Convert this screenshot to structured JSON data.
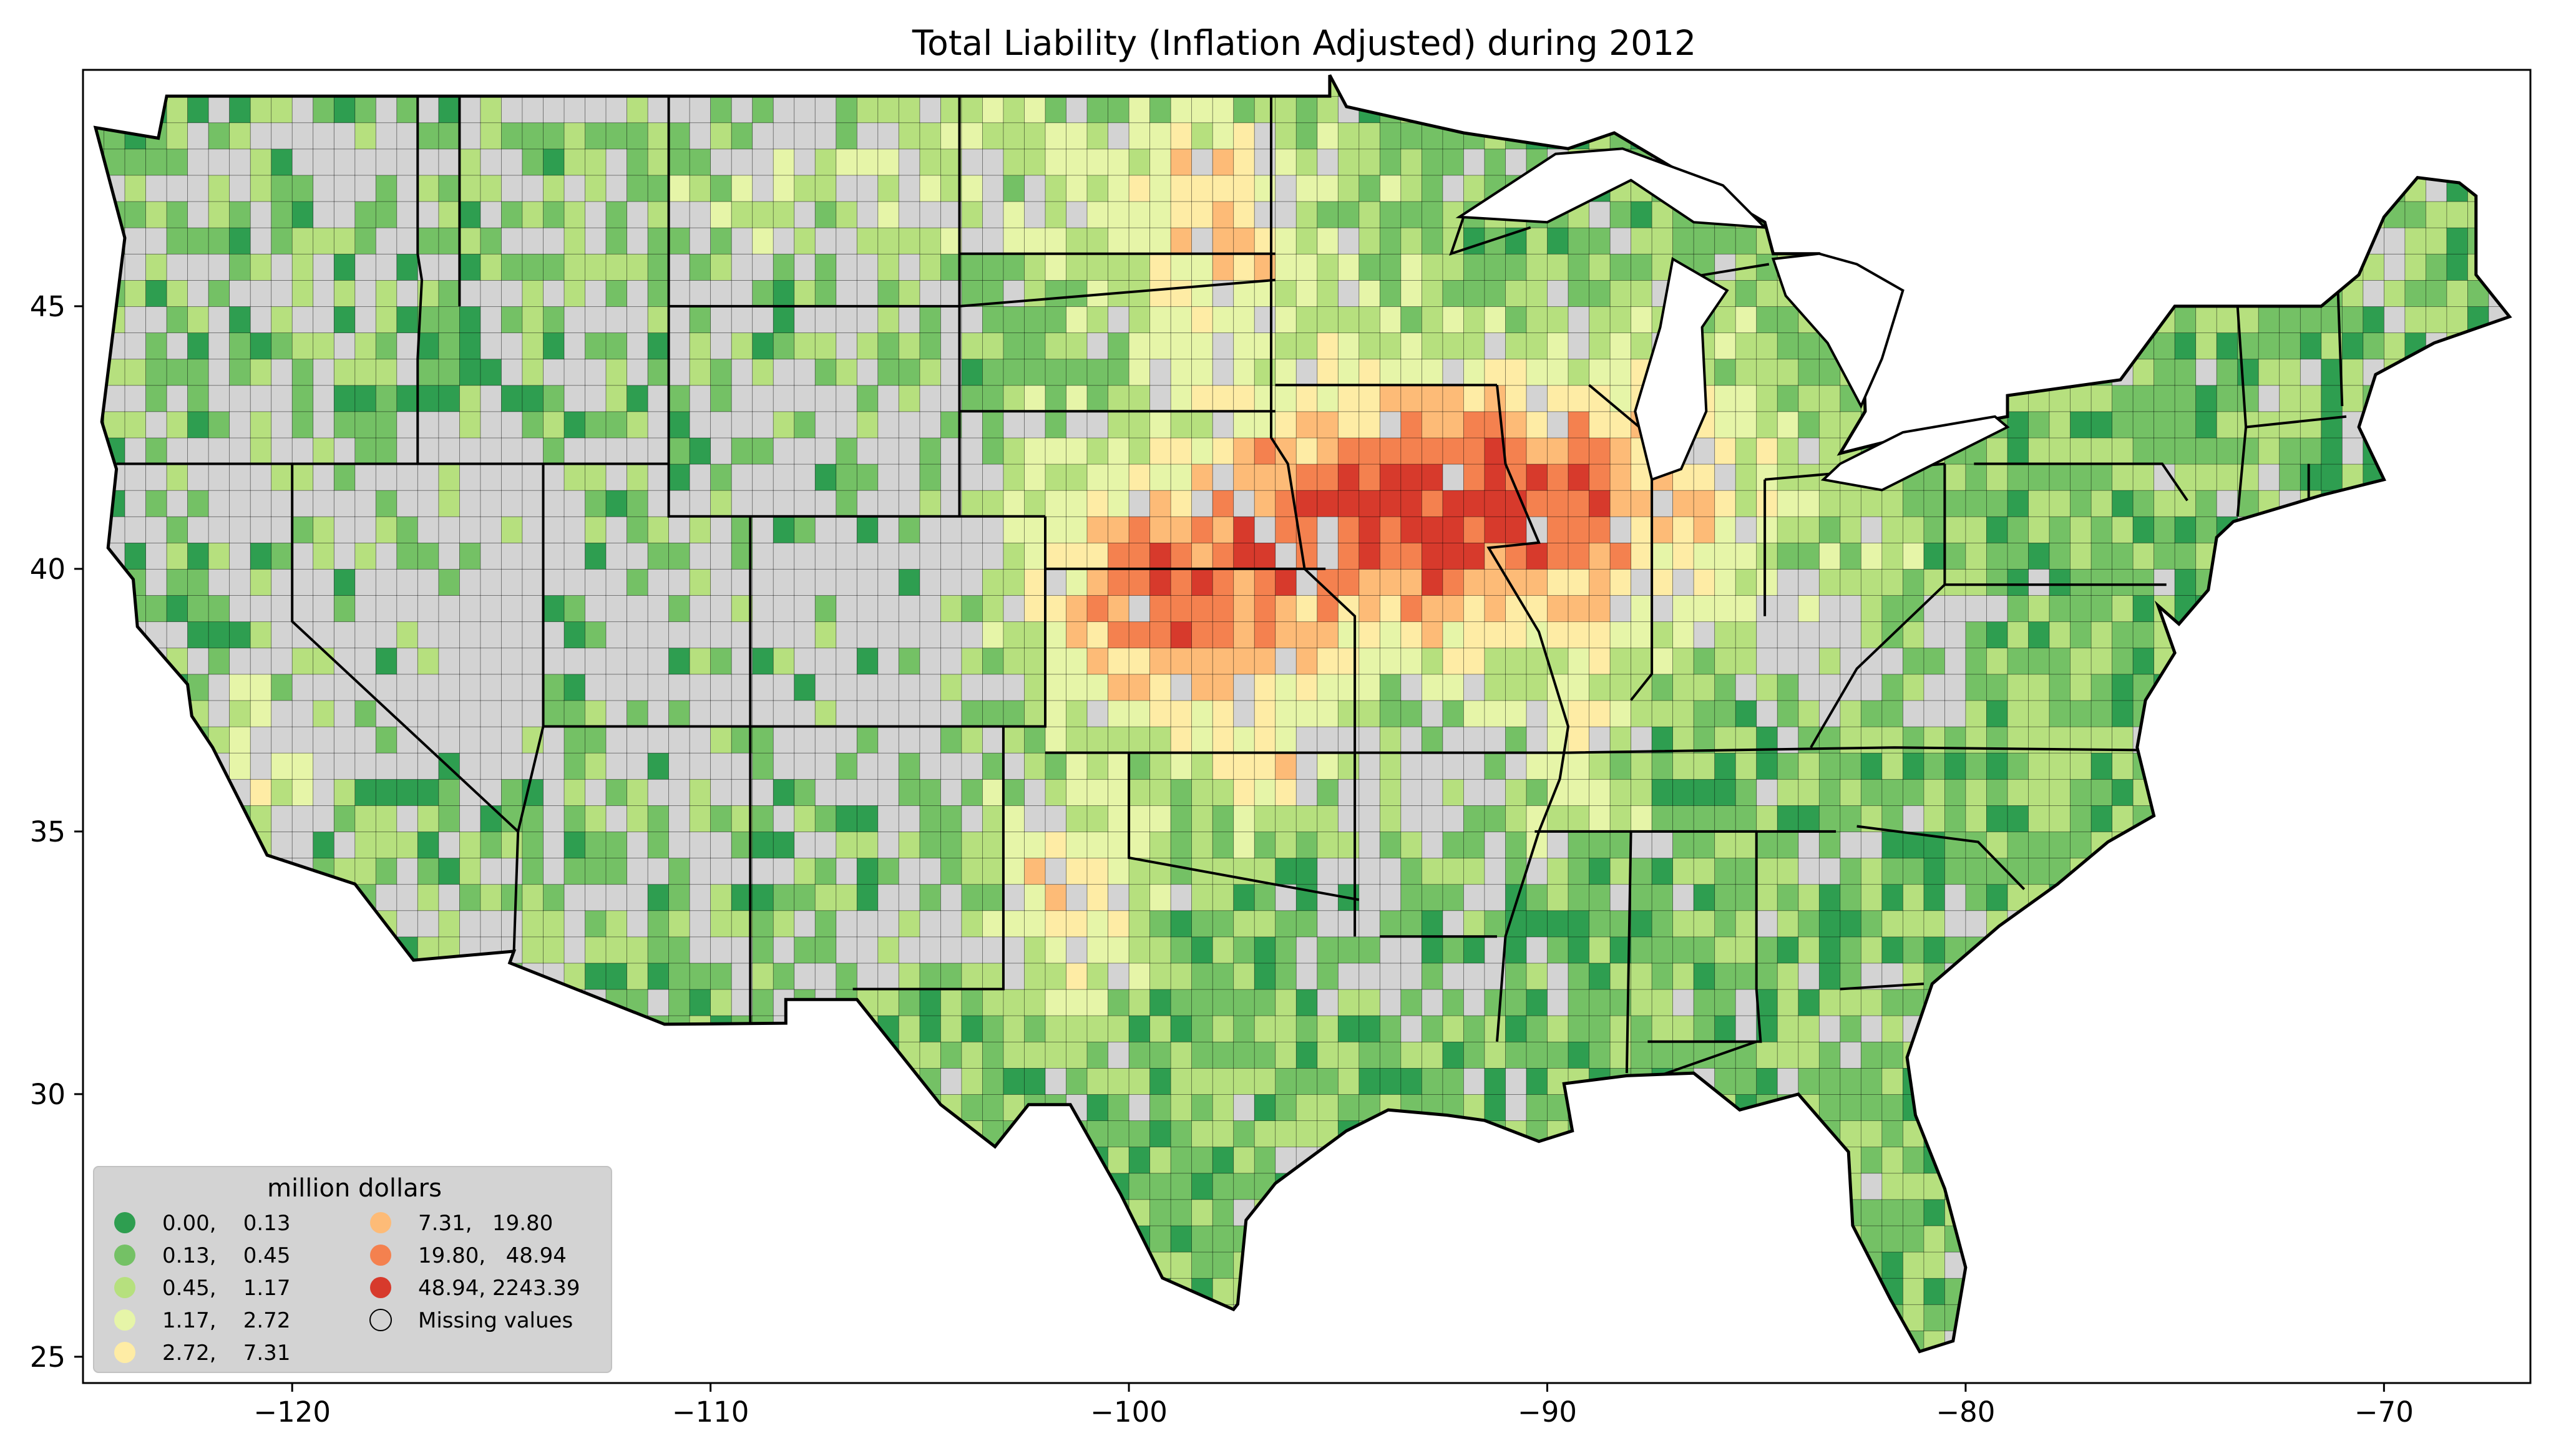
{
  "title": "Total Liability  (Inflation Adjusted) during 2012",
  "colors": {
    "c1": "#2e9e50",
    "c2": "#74c165",
    "c3": "#b6e07e",
    "c4": "#e6f5a8",
    "c5": "#feeca5",
    "c6": "#fdbb77",
    "c7": "#f4814f",
    "c8": "#d73a2c",
    "missing": "#d3d3d3",
    "border": "#000000"
  },
  "chart_data": {
    "type": "choropleth",
    "title": "Total Liability  (Inflation Adjusted) during 2012",
    "xlim": [
      -125,
      -66.5
    ],
    "ylim": [
      24.5,
      49.5
    ],
    "x_ticks": [
      -120,
      -110,
      -100,
      -90,
      -80,
      -70
    ],
    "y_ticks": [
      25,
      30,
      35,
      40,
      45
    ],
    "x_tick_labels": [
      "−120",
      "−110",
      "−100",
      "−90",
      "−80",
      "−70"
    ],
    "y_tick_labels": [
      "25",
      "30",
      "35",
      "40",
      "45"
    ],
    "legend": {
      "title": "million dollars",
      "position": "lower-left",
      "entries": [
        {
          "label": "0.00,    0.13",
          "color": "#2e9e50"
        },
        {
          "label": "0.13,    0.45",
          "color": "#74c165"
        },
        {
          "label": "0.45,    1.17",
          "color": "#b6e07e"
        },
        {
          "label": "1.17,    2.72",
          "color": "#e6f5a8"
        },
        {
          "label": "2.72,    7.31",
          "color": "#feeca5"
        },
        {
          "label": "7.31,   19.80",
          "color": "#fdbb77"
        },
        {
          "label": "19.80,   48.94",
          "color": "#f4814f"
        },
        {
          "label": "48.94, 2243.39",
          "color": "#d73a2c"
        },
        {
          "label": "Missing values",
          "color": "none"
        }
      ]
    }
  }
}
